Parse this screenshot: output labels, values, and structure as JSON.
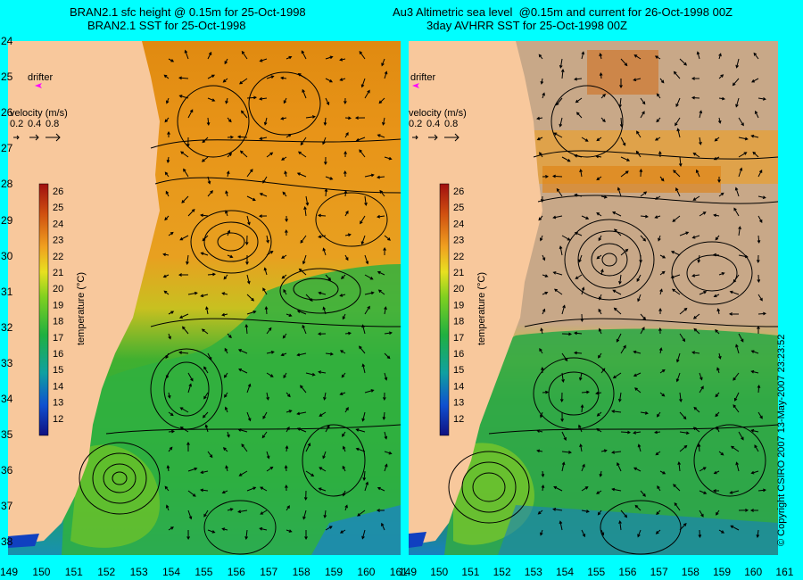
{
  "titles": {
    "left_line1": "BRAN2.1 sfc height @ 0.15m for 25-Oct-1998",
    "left_line2": "BRAN2.1 SST for 25-Oct-1998",
    "right_line1": "Au3 Altimetric sea level  @0.15m and current for 26-Oct-1998 00Z",
    "right_line2": "3day AVHRR SST for 25-Oct-1998 00Z"
  },
  "y_axis_labels": [
    "24",
    "25",
    "26",
    "27",
    "28",
    "29",
    "30",
    "31",
    "32",
    "33",
    "34",
    "35",
    "36",
    "37",
    "38"
  ],
  "x_axis_labels_left": [
    "149",
    "150",
    "151",
    "152",
    "153",
    "154",
    "155",
    "156",
    "157",
    "158",
    "159",
    "160",
    "161"
  ],
  "x_axis_labels_right": [
    "149",
    "150",
    "151",
    "152",
    "153",
    "154",
    "155",
    "156",
    "157",
    "158",
    "159",
    "160",
    "161"
  ],
  "legend": {
    "drifter_label": "drifter",
    "velocity_label": "velocity (m/s)",
    "velocity_scale": [
      "0.2",
      "0.4",
      "0.8"
    ],
    "temperature_label": "temperature (°C)",
    "temperature_ticks": [
      "26",
      "25",
      "24",
      "23",
      "22",
      "21",
      "20",
      "19",
      "18",
      "17",
      "16",
      "15",
      "14",
      "13",
      "12"
    ]
  },
  "colors": {
    "background": "#00ffff",
    "land": "#f8c89c",
    "cloud": "#c8a888",
    "drifter": "#ff00ff",
    "warm": "#e08a10",
    "cool": "#28b028"
  },
  "copyright": "© Copyright CSIRO 2007    13-May-2007 23:23:52"
}
